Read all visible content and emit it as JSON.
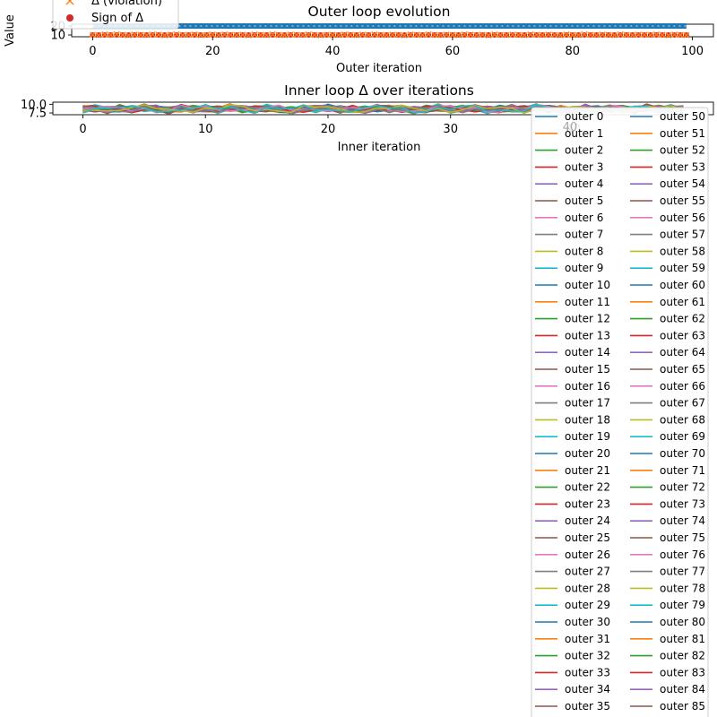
{
  "chart_data": [
    {
      "type": "scatter",
      "title": "Outer loop evolution",
      "xlabel": "Outer iteration",
      "ylabel": "Value",
      "xlim": [
        -3.5,
        103.5
      ],
      "ylim": [
        8,
        22
      ],
      "x_ticks": [
        0,
        20,
        40,
        60,
        80,
        100
      ],
      "y_ticks": [
        10,
        20
      ],
      "legend_position": "top-left (clipped)",
      "legend": [
        {
          "label": "Δ (violation)",
          "marker": "x",
          "color": "#ff7f0e"
        },
        {
          "label": "Sign of Δ",
          "marker": "o",
          "color": "#d62728"
        }
      ],
      "series": [
        {
          "name": "",
          "style": "line",
          "color": "#1f77b4",
          "start": 0,
          "values": [
            20,
            20,
            20,
            20,
            20,
            20,
            20,
            20,
            20,
            20,
            20,
            20,
            20,
            20,
            20,
            20,
            20,
            20,
            20,
            20,
            20,
            20,
            20,
            20,
            20,
            20,
            20,
            20,
            20,
            20,
            20,
            20,
            20,
            20,
            20,
            20,
            20,
            20,
            20,
            20,
            20,
            20,
            20,
            20,
            20,
            20,
            20,
            20,
            20,
            20,
            20,
            20,
            20,
            20,
            20,
            20,
            20,
            20,
            20,
            20,
            20,
            20,
            20,
            20,
            20,
            20,
            20,
            20,
            20,
            20,
            20,
            20,
            20,
            20,
            20,
            20,
            20,
            20,
            20,
            20,
            20,
            20,
            20,
            20,
            20,
            20,
            20,
            20,
            20,
            20,
            20,
            20,
            20,
            20,
            20,
            20,
            20,
            20,
            20,
            20
          ]
        },
        {
          "name": "Δ (violation)",
          "style": "x",
          "color": "#ff7f0e",
          "start": 0,
          "values": [
            10.2,
            9.7,
            10.5,
            9.9,
            10.8,
            10.1,
            9.6,
            10.4,
            10.0,
            9.8,
            10.6,
            10.2,
            9.5,
            10.3,
            10.7,
            9.9,
            10.1,
            10.5,
            9.7,
            10.0,
            10.4,
            9.8,
            10.6,
            10.2,
            9.9,
            10.3,
            9.6,
            10.5,
            10.1,
            9.8,
            10.7,
            10.0,
            9.7,
            10.4,
            10.2,
            9.9,
            10.6,
            10.1,
            9.5,
            10.3,
            10.0,
            9.8,
            10.5,
            10.2,
            9.7,
            10.4,
            9.9,
            10.6,
            10.1,
            9.8,
            10.3,
            10.0,
            9.6,
            10.5,
            10.2,
            9.9,
            10.7,
            10.1,
            9.8,
            10.4,
            10.0,
            9.7,
            10.6,
            10.2,
            9.9,
            10.3,
            9.5,
            10.5,
            10.1,
            9.8,
            10.4,
            10.0,
            9.7,
            10.6,
            10.2,
            9.9,
            10.3,
            10.1,
            9.6,
            10.5,
            10.0,
            9.8,
            10.7,
            10.2,
            9.9,
            10.4,
            10.1,
            9.7,
            10.6,
            10.0,
            9.8,
            10.3,
            10.2,
            9.9,
            10.5,
            10.1,
            9.6,
            10.4,
            10.0,
            9.8
          ]
        },
        {
          "name": "Sign of Δ",
          "style": "o",
          "color": "#d62728",
          "start": 0,
          "values": [
            10,
            10,
            10,
            10,
            10,
            10,
            10,
            10,
            10,
            10,
            10,
            10,
            10,
            10,
            10,
            10,
            10,
            10,
            10,
            10,
            10,
            10,
            10,
            10,
            10,
            10,
            10,
            10,
            10,
            10,
            10,
            10,
            10,
            10,
            10,
            10,
            10,
            10,
            10,
            10,
            10,
            10,
            10,
            10,
            10,
            10,
            10,
            10,
            10,
            10,
            10,
            10,
            10,
            10,
            10,
            10,
            10,
            10,
            10,
            10,
            10,
            10,
            10,
            10,
            10,
            10,
            10,
            10,
            10,
            10,
            10,
            10,
            10,
            10,
            10,
            10,
            10,
            10,
            10,
            10,
            10,
            10,
            10,
            10,
            10,
            10,
            10,
            10,
            10,
            10,
            10,
            10,
            10,
            10,
            10,
            10,
            10,
            10,
            10,
            10
          ]
        }
      ]
    },
    {
      "type": "line",
      "title": "Inner loop Δ over iterations",
      "xlabel": "Inner iteration",
      "ylabel": "",
      "xlim": [
        -2.45,
        51.45
      ],
      "ylim": [
        7,
        10.6
      ],
      "x_ticks": [
        0,
        10,
        20,
        30,
        40
      ],
      "y_ticks": [
        7.5,
        10.0
      ],
      "legend_position": "lower-right (overflowing)",
      "legend_columns": 2,
      "series_count": 100,
      "series_prefix": "outer",
      "series_base": [
        8.6,
        8.9,
        8.4,
        8.8,
        8.5,
        9.0,
        8.7,
        8.3,
        8.9,
        8.6,
        8.8,
        8.4,
        9.1,
        8.7,
        8.5,
        8.9,
        8.6,
        8.2,
        8.8,
        8.7,
        9.0,
        8.5,
        8.6,
        8.4,
        8.9,
        8.7,
        8.8,
        8.3,
        8.6,
        9.0,
        8.5,
        8.7,
        8.9,
        8.4,
        8.6,
        8.8,
        8.5,
        9.1,
        8.7,
        8.6,
        8.3,
        8.9,
        8.5,
        8.8,
        8.7,
        8.4,
        9.0,
        8.6,
        8.8,
        8.5
      ],
      "legend_labels": [
        "outer 0",
        "outer 1",
        "outer 2",
        "outer 3",
        "outer 4",
        "outer 5",
        "outer 6",
        "outer 7",
        "outer 8",
        "outer 9",
        "outer 10",
        "outer 11",
        "outer 12",
        "outer 13",
        "outer 14",
        "outer 15",
        "outer 16",
        "outer 17",
        "outer 18",
        "outer 19",
        "outer 20",
        "outer 21",
        "outer 22",
        "outer 23",
        "outer 24",
        "outer 25",
        "outer 26",
        "outer 27",
        "outer 28",
        "outer 29",
        "outer 30",
        "outer 31",
        "outer 32",
        "outer 33",
        "outer 34",
        "outer 35",
        "outer 50",
        "outer 51",
        "outer 52",
        "outer 53",
        "outer 54",
        "outer 55",
        "outer 56",
        "outer 57",
        "outer 58",
        "outer 59",
        "outer 60",
        "outer 61",
        "outer 62",
        "outer 63",
        "outer 64",
        "outer 65",
        "outer 66",
        "outer 67",
        "outer 68",
        "outer 69",
        "outer 70",
        "outer 71",
        "outer 72",
        "outer 73",
        "outer 74",
        "outer 75",
        "outer 76",
        "outer 77",
        "outer 78",
        "outer 79",
        "outer 80",
        "outer 81",
        "outer 82",
        "outer 83",
        "outer 84",
        "outer 85"
      ],
      "overlapped_text": "40"
    }
  ],
  "palette": [
    "#1f77b4",
    "#ff7f0e",
    "#2ca02c",
    "#d62728",
    "#9467bd",
    "#8c564b",
    "#e377c2",
    "#7f7f7f",
    "#bcbd22",
    "#17becf"
  ]
}
